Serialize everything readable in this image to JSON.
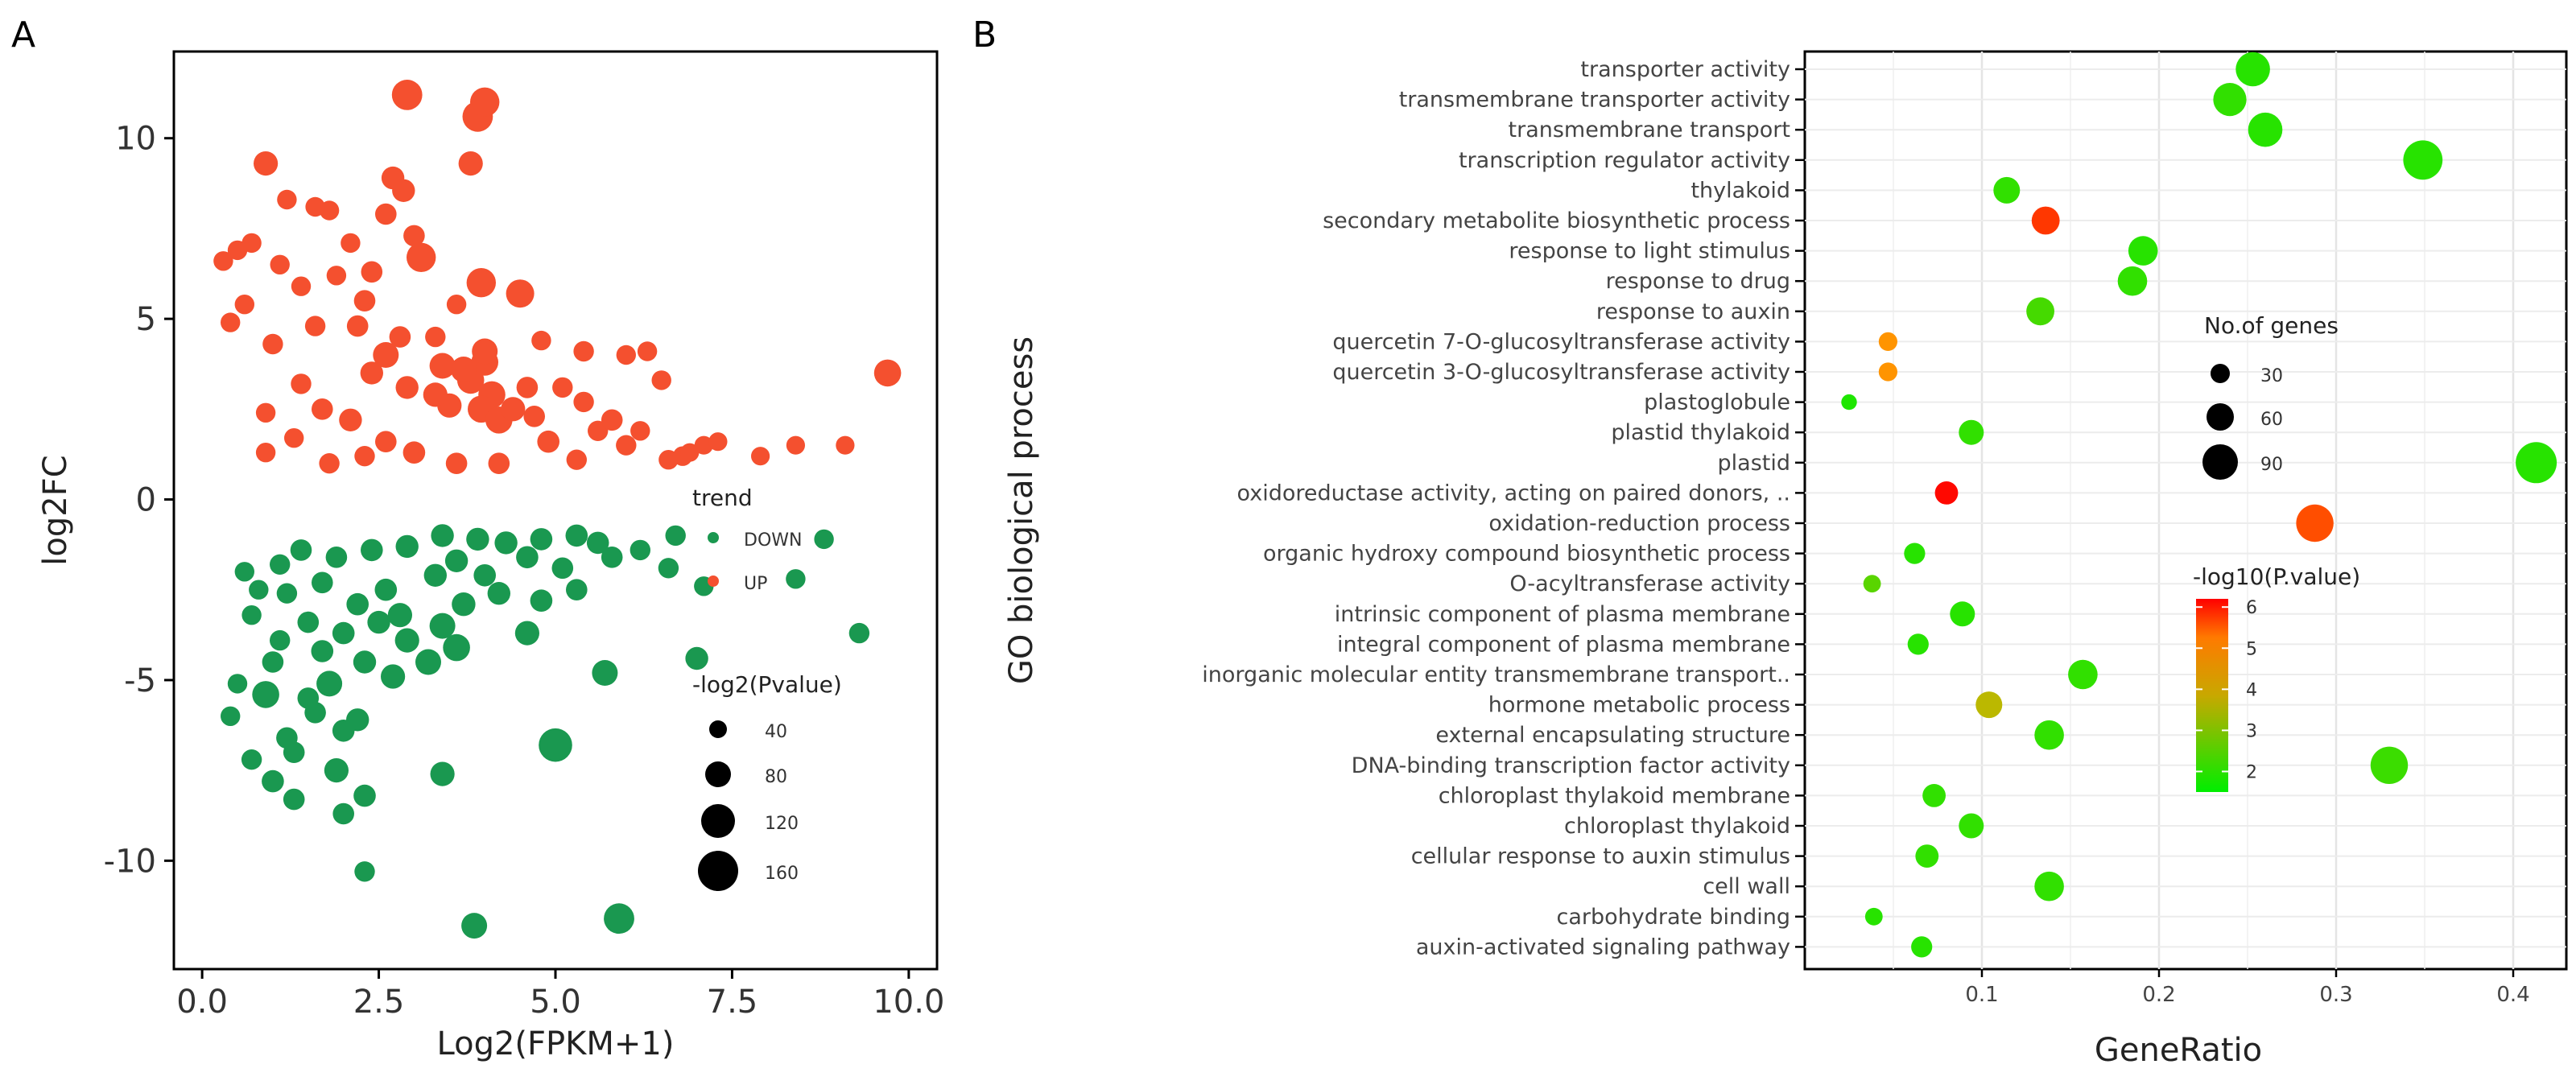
{
  "panels": {
    "a_label": "A",
    "b_label": "B"
  },
  "chart_data": [
    {
      "panel": "A",
      "type": "scatter",
      "title": "",
      "xlabel": "Log2(FPKM+1)",
      "ylabel": "log2FC",
      "xlim": [
        -0.4,
        10.4
      ],
      "ylim": [
        -13,
        12.4
      ],
      "xticks": [
        {
          "v": 0.0,
          "label": "0.0"
        },
        {
          "v": 2.5,
          "label": "2.5"
        },
        {
          "v": 5.0,
          "label": "5.0"
        },
        {
          "v": 7.5,
          "label": "7.5"
        },
        {
          "v": 10.0,
          "label": "10.0"
        }
      ],
      "yticks": [
        {
          "v": -10,
          "label": "-10"
        },
        {
          "v": -5,
          "label": "-5"
        },
        {
          "v": 0,
          "label": "0"
        },
        {
          "v": 5,
          "label": "5"
        },
        {
          "v": 10,
          "label": "10"
        }
      ],
      "legend_trend": {
        "title": "trend",
        "items": [
          {
            "label": "DOWN",
            "color": "#1a9850"
          },
          {
            "label": "UP",
            "color": "#f4502f"
          }
        ]
      },
      "legend_size": {
        "title": "-log2(Pvalue)",
        "values": [
          40,
          80,
          120,
          160
        ]
      },
      "colors": {
        "UP": "#f4502f",
        "DOWN": "#1a9850"
      },
      "series": [
        {
          "name": "UP",
          "points": [
            [
              2.9,
              11.2,
              120
            ],
            [
              3.9,
              10.6,
              120
            ],
            [
              4.0,
              11.0,
              110
            ],
            [
              3.8,
              9.3,
              70
            ],
            [
              0.9,
              9.3,
              70
            ],
            [
              2.7,
              8.9,
              60
            ],
            [
              2.85,
              8.55,
              60
            ],
            [
              1.2,
              8.3,
              40
            ],
            [
              1.8,
              8.0,
              40
            ],
            [
              1.6,
              8.1,
              40
            ],
            [
              2.6,
              7.9,
              50
            ],
            [
              3.1,
              6.7,
              110
            ],
            [
              3.95,
              6.0,
              110
            ],
            [
              4.5,
              5.7,
              100
            ],
            [
              2.4,
              6.3,
              50
            ],
            [
              3.0,
              7.3,
              50
            ],
            [
              0.7,
              7.1,
              40
            ],
            [
              0.5,
              6.9,
              40
            ],
            [
              1.1,
              6.5,
              40
            ],
            [
              0.3,
              6.6,
              40
            ],
            [
              2.1,
              7.1,
              40
            ],
            [
              1.9,
              6.2,
              40
            ],
            [
              3.6,
              5.4,
              40
            ],
            [
              0.6,
              5.4,
              40
            ],
            [
              1.4,
              5.9,
              40
            ],
            [
              2.3,
              5.5,
              50
            ],
            [
              2.2,
              4.8,
              50
            ],
            [
              2.8,
              4.5,
              50
            ],
            [
              1.6,
              4.8,
              45
            ],
            [
              1.0,
              4.3,
              45
            ],
            [
              0.4,
              4.9,
              40
            ],
            [
              3.3,
              4.5,
              45
            ],
            [
              4.8,
              4.4,
              40
            ],
            [
              5.4,
              4.1,
              45
            ],
            [
              6.0,
              4.0,
              40
            ],
            [
              6.3,
              4.1,
              40
            ],
            [
              6.5,
              3.3,
              40
            ],
            [
              2.6,
              4.0,
              80
            ],
            [
              3.4,
              3.7,
              80
            ],
            [
              4.0,
              3.8,
              90
            ],
            [
              4.0,
              4.1,
              80
            ],
            [
              3.8,
              3.3,
              90
            ],
            [
              4.1,
              2.9,
              90
            ],
            [
              3.7,
              3.6,
              80
            ],
            [
              3.95,
              2.5,
              90
            ],
            [
              4.2,
              2.2,
              90
            ],
            [
              4.4,
              2.5,
              70
            ],
            [
              3.5,
              2.6,
              70
            ],
            [
              3.3,
              2.9,
              70
            ],
            [
              2.4,
              3.5,
              60
            ],
            [
              2.9,
              3.1,
              60
            ],
            [
              2.1,
              2.2,
              60
            ],
            [
              1.7,
              2.5,
              50
            ],
            [
              1.4,
              3.2,
              45
            ],
            [
              0.9,
              2.4,
              40
            ],
            [
              1.3,
              1.7,
              40
            ],
            [
              0.9,
              1.3,
              40
            ],
            [
              2.6,
              1.6,
              50
            ],
            [
              3.0,
              1.3,
              55
            ],
            [
              4.6,
              3.1,
              50
            ],
            [
              4.7,
              2.3,
              50
            ],
            [
              4.9,
              1.6,
              55
            ],
            [
              5.1,
              3.1,
              45
            ],
            [
              5.4,
              2.7,
              45
            ],
            [
              5.6,
              1.9,
              45
            ],
            [
              5.8,
              2.2,
              50
            ],
            [
              6.0,
              1.5,
              45
            ],
            [
              6.2,
              1.9,
              40
            ],
            [
              6.6,
              1.1,
              40
            ],
            [
              6.8,
              1.2,
              40
            ],
            [
              7.1,
              1.5,
              35
            ],
            [
              7.3,
              1.6,
              35
            ],
            [
              7.9,
              1.2,
              35
            ],
            [
              8.4,
              1.5,
              35
            ],
            [
              9.1,
              1.5,
              35
            ],
            [
              9.7,
              3.5,
              90
            ],
            [
              3.6,
              1.0,
              50
            ],
            [
              4.2,
              1.0,
              50
            ],
            [
              1.8,
              1.0,
              45
            ],
            [
              2.3,
              1.2,
              45
            ],
            [
              5.3,
              1.1,
              45
            ],
            [
              6.9,
              1.3,
              35
            ]
          ]
        },
        {
          "name": "DOWN",
          "points": [
            [
              3.4,
              -1.0,
              60
            ],
            [
              2.9,
              -1.3,
              60
            ],
            [
              3.9,
              -1.1,
              60
            ],
            [
              4.3,
              -1.2,
              60
            ],
            [
              4.8,
              -1.1,
              55
            ],
            [
              5.3,
              -1.0,
              55
            ],
            [
              5.6,
              -1.2,
              55
            ],
            [
              2.4,
              -1.4,
              55
            ],
            [
              1.9,
              -1.6,
              50
            ],
            [
              1.4,
              -1.4,
              50
            ],
            [
              1.1,
              -1.8,
              45
            ],
            [
              0.8,
              -2.5,
              40
            ],
            [
              0.6,
              -2.0,
              40
            ],
            [
              1.2,
              -2.6,
              45
            ],
            [
              1.7,
              -2.3,
              50
            ],
            [
              2.6,
              -2.5,
              55
            ],
            [
              3.3,
              -2.1,
              60
            ],
            [
              3.6,
              -1.7,
              60
            ],
            [
              4.0,
              -2.1,
              55
            ],
            [
              4.6,
              -1.6,
              55
            ],
            [
              5.1,
              -1.9,
              50
            ],
            [
              5.8,
              -1.6,
              50
            ],
            [
              6.2,
              -1.4,
              45
            ],
            [
              6.6,
              -1.9,
              45
            ],
            [
              7.1,
              -2.4,
              40
            ],
            [
              2.2,
              -2.9,
              55
            ],
            [
              2.8,
              -3.2,
              70
            ],
            [
              3.4,
              -3.5,
              80
            ],
            [
              3.6,
              -4.1,
              90
            ],
            [
              3.2,
              -4.5,
              80
            ],
            [
              2.0,
              -3.7,
              55
            ],
            [
              1.5,
              -3.4,
              50
            ],
            [
              0.7,
              -3.2,
              40
            ],
            [
              1.0,
              -4.5,
              50
            ],
            [
              1.7,
              -4.2,
              55
            ],
            [
              2.3,
              -4.5,
              60
            ],
            [
              2.7,
              -4.9,
              70
            ],
            [
              4.6,
              -3.7,
              70
            ],
            [
              5.7,
              -4.8,
              80
            ],
            [
              7.0,
              -4.4,
              60
            ],
            [
              8.8,
              -1.1,
              40
            ],
            [
              9.3,
              -3.7,
              45
            ],
            [
              0.9,
              -5.4,
              90
            ],
            [
              1.8,
              -5.1,
              80
            ],
            [
              2.2,
              -6.1,
              60
            ],
            [
              0.4,
              -6.0,
              40
            ],
            [
              1.2,
              -6.6,
              50
            ],
            [
              1.5,
              -5.5,
              50
            ],
            [
              2.0,
              -6.4,
              55
            ],
            [
              0.7,
              -7.2,
              45
            ],
            [
              1.3,
              -7.0,
              50
            ],
            [
              1.9,
              -7.5,
              70
            ],
            [
              1.0,
              -7.8,
              55
            ],
            [
              1.3,
              -8.3,
              50
            ],
            [
              2.3,
              -8.2,
              55
            ],
            [
              2.0,
              -8.7,
              50
            ],
            [
              3.4,
              -7.6,
              70
            ],
            [
              5.0,
              -6.8,
              150
            ],
            [
              2.3,
              -10.3,
              45
            ],
            [
              3.85,
              -11.8,
              80
            ],
            [
              5.9,
              -11.6,
              120
            ],
            [
              1.6,
              -5.9,
              50
            ],
            [
              2.9,
              -3.9,
              70
            ],
            [
              3.7,
              -2.9,
              65
            ],
            [
              4.2,
              -2.6,
              60
            ],
            [
              5.3,
              -2.5,
              50
            ],
            [
              6.7,
              -1.0,
              45
            ],
            [
              8.4,
              -2.2,
              40
            ],
            [
              0.5,
              -5.1,
              40
            ],
            [
              1.1,
              -3.9,
              45
            ],
            [
              2.5,
              -3.4,
              60
            ],
            [
              4.8,
              -2.8,
              55
            ]
          ]
        }
      ]
    },
    {
      "panel": "B",
      "type": "scatter",
      "title": "",
      "xlabel": "GeneRatio",
      "ylabel": "GO biological process",
      "xlim": [
        0.0,
        0.43
      ],
      "xticks": [
        {
          "v": 0.1,
          "label": "0.1"
        },
        {
          "v": 0.2,
          "label": "0.2"
        },
        {
          "v": 0.3,
          "label": "0.3"
        },
        {
          "v": 0.4,
          "label": "0.4"
        }
      ],
      "legend_size": {
        "title": "No.of genes",
        "values": [
          30,
          60,
          90
        ]
      },
      "legend_color": {
        "title": "-log10(P.value)",
        "range": [
          1.5,
          6.2
        ],
        "ticks": [
          2,
          3,
          4,
          5,
          6
        ],
        "low_color": "#00ee00",
        "mid_color": "#ffa500",
        "high_color": "#ff0000"
      },
      "terms": [
        {
          "name": "transporter activity",
          "x": 0.253,
          "count": 60,
          "p": 1.9
        },
        {
          "name": "transmembrane transporter activity",
          "x": 0.24,
          "count": 55,
          "p": 2.0
        },
        {
          "name": "transmembrane transport",
          "x": 0.26,
          "count": 60,
          "p": 1.9
        },
        {
          "name": "transcription regulator activity",
          "x": 0.349,
          "count": 85,
          "p": 1.9
        },
        {
          "name": "thylakoid",
          "x": 0.114,
          "count": 30,
          "p": 2.0
        },
        {
          "name": "secondary metabolite biosynthetic process",
          "x": 0.136,
          "count": 35,
          "p": 5.5
        },
        {
          "name": "response to light stimulus",
          "x": 0.191,
          "count": 40,
          "p": 1.9
        },
        {
          "name": "response to drug",
          "x": 0.185,
          "count": 40,
          "p": 2.0
        },
        {
          "name": "response to auxin",
          "x": 0.133,
          "count": 35,
          "p": 2.2
        },
        {
          "name": "quercetin 7-O-glucosyltransferase activity",
          "x": 0.047,
          "count": 10,
          "p": 4.3
        },
        {
          "name": "quercetin 3-O-glucosyltransferase activity",
          "x": 0.047,
          "count": 10,
          "p": 4.3
        },
        {
          "name": "plastoglobule",
          "x": 0.025,
          "count": 5,
          "p": 1.8
        },
        {
          "name": "plastid thylakoid",
          "x": 0.094,
          "count": 25,
          "p": 2.0
        },
        {
          "name": "plastid",
          "x": 0.413,
          "count": 95,
          "p": 1.9
        },
        {
          "name": "oxidoreductase activity, acting on paired donors, ..",
          "x": 0.08,
          "count": 20,
          "p": 6.1
        },
        {
          "name": "oxidation-reduction process",
          "x": 0.288,
          "count": 75,
          "p": 5.2
        },
        {
          "name": "organic hydroxy compound biosynthetic process",
          "x": 0.062,
          "count": 15,
          "p": 1.9
        },
        {
          "name": "O-acyltransferase activity",
          "x": 0.038,
          "count": 8,
          "p": 2.4
        },
        {
          "name": "intrinsic component of plasma membrane",
          "x": 0.089,
          "count": 25,
          "p": 1.9
        },
        {
          "name": "integral component of plasma membrane",
          "x": 0.064,
          "count": 15,
          "p": 1.9
        },
        {
          "name": "inorganic molecular entity transmembrane transport..",
          "x": 0.157,
          "count": 40,
          "p": 2.0
        },
        {
          "name": "hormone metabolic process",
          "x": 0.104,
          "count": 30,
          "p": 3.4
        },
        {
          "name": "external encapsulating structure",
          "x": 0.138,
          "count": 40,
          "p": 2.0
        },
        {
          "name": "DNA-binding transcription factor activity",
          "x": 0.33,
          "count": 75,
          "p": 2.1
        },
        {
          "name": "chloroplast thylakoid membrane",
          "x": 0.073,
          "count": 20,
          "p": 2.0
        },
        {
          "name": "chloroplast thylakoid",
          "x": 0.094,
          "count": 25,
          "p": 2.0
        },
        {
          "name": "cellular response to auxin stimulus",
          "x": 0.069,
          "count": 20,
          "p": 2.0
        },
        {
          "name": "cell wall",
          "x": 0.138,
          "count": 40,
          "p": 2.0
        },
        {
          "name": "carbohydrate binding",
          "x": 0.039,
          "count": 8,
          "p": 1.9
        },
        {
          "name": "auxin-activated signaling pathway",
          "x": 0.066,
          "count": 15,
          "p": 1.9
        }
      ]
    }
  ]
}
